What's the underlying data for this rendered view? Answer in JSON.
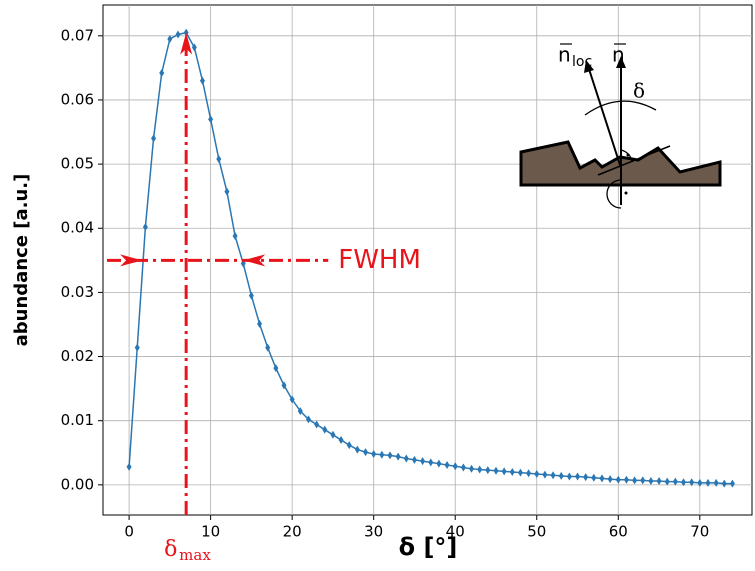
{
  "chart_data": {
    "type": "line",
    "x_label": "δ [°]",
    "y_label": "abundance [a.u.]",
    "x": [
      0,
      1,
      2,
      3,
      4,
      5,
      6,
      7,
      8,
      9,
      10,
      11,
      12,
      13,
      14,
      15,
      16,
      17,
      18,
      19,
      20,
      21,
      22,
      23,
      24,
      25,
      26,
      27,
      28,
      29,
      30,
      31,
      32,
      33,
      34,
      35,
      36,
      37,
      38,
      39,
      40,
      41,
      42,
      43,
      44,
      45,
      46,
      47,
      48,
      49,
      50,
      51,
      52,
      53,
      54,
      55,
      56,
      57,
      58,
      59,
      60,
      61,
      62,
      63,
      64,
      65,
      66,
      67,
      68,
      69,
      70,
      71,
      72,
      73,
      74
    ],
    "series": [
      {
        "color": "#2a77b4",
        "values": [
          0.0028,
          0.0214,
          0.0402,
          0.054,
          0.0642,
          0.0695,
          0.0702,
          0.0705,
          0.0682,
          0.063,
          0.057,
          0.0508,
          0.0457,
          0.0388,
          0.0345,
          0.0295,
          0.0251,
          0.0214,
          0.0182,
          0.0155,
          0.0133,
          0.0115,
          0.0102,
          0.0094,
          0.0086,
          0.0078,
          0.007,
          0.0062,
          0.0055,
          0.0051,
          0.0048,
          0.0047,
          0.0046,
          0.0044,
          0.0041,
          0.0039,
          0.0037,
          0.0035,
          0.0033,
          0.0031,
          0.0029,
          0.0027,
          0.0025,
          0.0024,
          0.0023,
          0.0022,
          0.0021,
          0.002,
          0.0019,
          0.0018,
          0.0017,
          0.0016,
          0.0015,
          0.0014,
          0.0013,
          0.0013,
          0.0012,
          0.0011,
          0.001,
          0.0009,
          0.0008,
          0.0008,
          0.0007,
          0.0007,
          0.0006,
          0.0006,
          0.0005,
          0.0005,
          0.0004,
          0.0004,
          0.0003,
          0.0003,
          0.0003,
          0.0002,
          0.0002
        ]
      }
    ],
    "xlim": [
      -3.2,
      76.4
    ],
    "ylim": [
      -0.0047,
      0.0748
    ],
    "xticks": [
      0,
      10,
      20,
      30,
      40,
      50,
      60,
      70
    ],
    "yticks": [
      {
        "value": 0,
        "label": "0.00"
      },
      0.01,
      0.02,
      0.03,
      0.04,
      0.05,
      0.06,
      0.07
    ],
    "grid": true,
    "annotation_color": "#e8141c",
    "delta_max": {
      "symbol": "δ",
      "subscript": "max",
      "x": 7,
      "y": 0.0705
    },
    "fwhm": {
      "label": "FWHM",
      "y": 0.035,
      "left": 1.6,
      "right": 14
    }
  },
  "inset": {
    "n_loc": "n",
    "n_loc_sub": "loc",
    "n": "n",
    "delta": "δ"
  }
}
